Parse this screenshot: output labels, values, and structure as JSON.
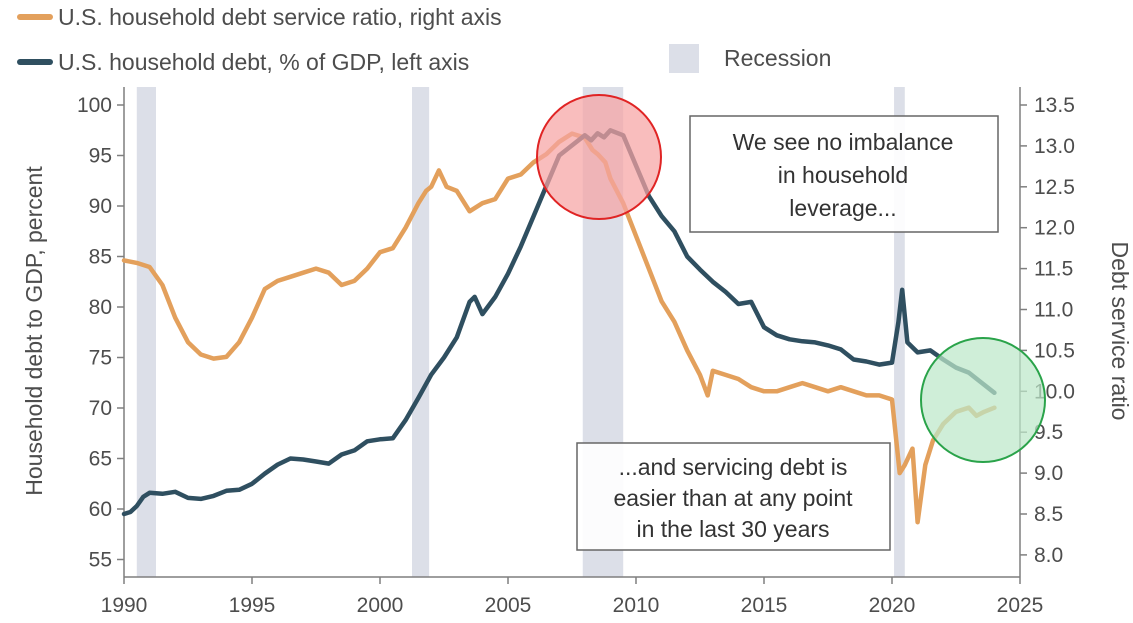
{
  "chart_data": {
    "type": "line",
    "title": "",
    "legend": {
      "placement": "top-left",
      "items": [
        {
          "label": "U.S. household debt service ratio, right axis",
          "color": "#e3a05c",
          "kind": "line"
        },
        {
          "label": "U.S. household debt, % of GDP, left axis",
          "color": "#2f4f60",
          "kind": "line"
        },
        {
          "label": "Recession",
          "color": "#dcdfe8",
          "kind": "box"
        }
      ]
    },
    "axes": {
      "x": {
        "min": 1990,
        "max": 2025,
        "ticks": [
          "1990",
          "1995",
          "2000",
          "2005",
          "2010",
          "2015",
          "2020",
          "2025"
        ]
      },
      "y_left": {
        "label": "Household debt to GDP, percent",
        "min": 53,
        "max": 101,
        "ticks": [
          "55",
          "60",
          "65",
          "70",
          "75",
          "80",
          "85",
          "90",
          "95",
          "100"
        ]
      },
      "y_right": {
        "label": "Debt service ratio",
        "min": 7.8,
        "max": 13.7,
        "ticks": [
          "8.0",
          "8.5",
          "9.0",
          "9.5",
          "10.0",
          "10.5",
          "11.0",
          "11.5",
          "12.0",
          "12.5",
          "13.0",
          "13.5"
        ]
      }
    },
    "grid": false,
    "recessions": [
      [
        1990.5,
        1991.25
      ],
      [
        2001.25,
        2001.92
      ],
      [
        2007.92,
        2009.5
      ],
      [
        2020.08,
        2020.5
      ]
    ],
    "series": [
      {
        "name": "U.S. household debt, % of GDP, left axis",
        "axis": "left",
        "color": "#2f4f60",
        "points": [
          [
            1990.0,
            59.5
          ],
          [
            1990.25,
            59.7
          ],
          [
            1990.5,
            60.3
          ],
          [
            1990.75,
            61.2
          ],
          [
            1991.0,
            61.6
          ],
          [
            1991.5,
            61.5
          ],
          [
            1992.0,
            61.7
          ],
          [
            1992.5,
            61.1
          ],
          [
            1993.0,
            61.0
          ],
          [
            1993.5,
            61.3
          ],
          [
            1994.0,
            61.8
          ],
          [
            1994.5,
            61.9
          ],
          [
            1995.0,
            62.5
          ],
          [
            1995.5,
            63.5
          ],
          [
            1996.0,
            64.4
          ],
          [
            1996.5,
            65.0
          ],
          [
            1997.0,
            64.9
          ],
          [
            1997.5,
            64.7
          ],
          [
            1998.0,
            64.5
          ],
          [
            1998.5,
            65.4
          ],
          [
            1999.0,
            65.8
          ],
          [
            1999.5,
            66.7
          ],
          [
            2000.0,
            66.9
          ],
          [
            2000.5,
            67.0
          ],
          [
            2001.0,
            68.8
          ],
          [
            2001.5,
            71.0
          ],
          [
            2002.0,
            73.3
          ],
          [
            2002.5,
            75.0
          ],
          [
            2003.0,
            77.0
          ],
          [
            2003.5,
            80.5
          ],
          [
            2003.7,
            81.0
          ],
          [
            2004.0,
            79.3
          ],
          [
            2004.5,
            81.0
          ],
          [
            2005.0,
            83.3
          ],
          [
            2005.5,
            86.0
          ],
          [
            2006.0,
            89.0
          ],
          [
            2006.5,
            92.0
          ],
          [
            2007.0,
            95.0
          ],
          [
            2007.5,
            96.0
          ],
          [
            2008.0,
            97.0
          ],
          [
            2008.25,
            96.5
          ],
          [
            2008.5,
            97.2
          ],
          [
            2008.75,
            96.8
          ],
          [
            2009.0,
            97.5
          ],
          [
            2009.5,
            97.0
          ],
          [
            2010.0,
            94.0
          ],
          [
            2010.5,
            91.0
          ],
          [
            2011.0,
            89.0
          ],
          [
            2011.5,
            87.5
          ],
          [
            2012.0,
            85.0
          ],
          [
            2012.5,
            83.7
          ],
          [
            2013.0,
            82.5
          ],
          [
            2013.5,
            81.5
          ],
          [
            2014.0,
            80.3
          ],
          [
            2014.5,
            80.5
          ],
          [
            2015.0,
            78.0
          ],
          [
            2015.5,
            77.2
          ],
          [
            2016.0,
            76.8
          ],
          [
            2016.5,
            76.6
          ],
          [
            2017.0,
            76.5
          ],
          [
            2017.5,
            76.2
          ],
          [
            2018.0,
            75.8
          ],
          [
            2018.5,
            74.8
          ],
          [
            2019.0,
            74.6
          ],
          [
            2019.5,
            74.3
          ],
          [
            2020.0,
            74.5
          ],
          [
            2020.25,
            78.5
          ],
          [
            2020.4,
            81.7
          ],
          [
            2020.6,
            76.5
          ],
          [
            2021.0,
            75.5
          ],
          [
            2021.5,
            75.7
          ],
          [
            2022.0,
            74.8
          ],
          [
            2022.5,
            74.0
          ],
          [
            2023.0,
            73.5
          ],
          [
            2023.5,
            72.5
          ],
          [
            2024.0,
            71.5
          ]
        ]
      },
      {
        "name": "U.S. household debt service ratio, right axis",
        "axis": "right",
        "color": "#e3a05c",
        "points": [
          [
            1990.0,
            11.6
          ],
          [
            1990.5,
            11.57
          ],
          [
            1991.0,
            11.52
          ],
          [
            1991.5,
            11.3
          ],
          [
            1992.0,
            10.9
          ],
          [
            1992.5,
            10.6
          ],
          [
            1993.0,
            10.45
          ],
          [
            1993.5,
            10.4
          ],
          [
            1994.0,
            10.42
          ],
          [
            1994.5,
            10.6
          ],
          [
            1995.0,
            10.9
          ],
          [
            1995.5,
            11.25
          ],
          [
            1996.0,
            11.35
          ],
          [
            1996.5,
            11.4
          ],
          [
            1997.0,
            11.45
          ],
          [
            1997.5,
            11.5
          ],
          [
            1998.0,
            11.45
          ],
          [
            1998.5,
            11.3
          ],
          [
            1999.0,
            11.35
          ],
          [
            1999.5,
            11.5
          ],
          [
            2000.0,
            11.7
          ],
          [
            2000.5,
            11.75
          ],
          [
            2001.0,
            12.0
          ],
          [
            2001.5,
            12.3
          ],
          [
            2001.8,
            12.45
          ],
          [
            2002.0,
            12.5
          ],
          [
            2002.3,
            12.7
          ],
          [
            2002.6,
            12.5
          ],
          [
            2003.0,
            12.45
          ],
          [
            2003.5,
            12.2
          ],
          [
            2004.0,
            12.3
          ],
          [
            2004.5,
            12.35
          ],
          [
            2005.0,
            12.6
          ],
          [
            2005.5,
            12.65
          ],
          [
            2006.0,
            12.8
          ],
          [
            2006.5,
            12.9
          ],
          [
            2007.0,
            13.05
          ],
          [
            2007.5,
            13.15
          ],
          [
            2008.0,
            13.1
          ],
          [
            2008.3,
            12.95
          ],
          [
            2008.5,
            12.9
          ],
          [
            2008.8,
            12.8
          ],
          [
            2009.0,
            12.6
          ],
          [
            2009.5,
            12.3
          ],
          [
            2010.0,
            11.9
          ],
          [
            2010.5,
            11.5
          ],
          [
            2011.0,
            11.1
          ],
          [
            2011.5,
            10.85
          ],
          [
            2012.0,
            10.5
          ],
          [
            2012.5,
            10.2
          ],
          [
            2012.8,
            9.95
          ],
          [
            2013.0,
            10.25
          ],
          [
            2013.5,
            10.2
          ],
          [
            2014.0,
            10.15
          ],
          [
            2014.5,
            10.05
          ],
          [
            2015.0,
            10.0
          ],
          [
            2015.5,
            10.0
          ],
          [
            2016.0,
            10.05
          ],
          [
            2016.5,
            10.1
          ],
          [
            2017.0,
            10.05
          ],
          [
            2017.5,
            10.0
          ],
          [
            2018.0,
            10.05
          ],
          [
            2018.5,
            10.0
          ],
          [
            2019.0,
            9.95
          ],
          [
            2019.5,
            9.95
          ],
          [
            2020.0,
            9.9
          ],
          [
            2020.3,
            9.0
          ],
          [
            2020.5,
            9.1
          ],
          [
            2020.8,
            9.3
          ],
          [
            2021.0,
            8.4
          ],
          [
            2021.3,
            9.1
          ],
          [
            2021.6,
            9.4
          ],
          [
            2022.0,
            9.6
          ],
          [
            2022.5,
            9.75
          ],
          [
            2023.0,
            9.8
          ],
          [
            2023.3,
            9.7
          ],
          [
            2023.6,
            9.75
          ],
          [
            2024.0,
            9.8
          ]
        ]
      }
    ],
    "annotations": [
      {
        "lines": [
          "We see no imbalance",
          "in household",
          "leverage..."
        ]
      },
      {
        "lines": [
          "...and servicing debt is",
          "easier than at any point",
          "in the last 30 years"
        ]
      }
    ],
    "highlights": [
      {
        "fill": "#f6a3a3",
        "stroke": "#e02424"
      },
      {
        "fill": "#bde8c9",
        "stroke": "#2aa34a"
      }
    ]
  }
}
